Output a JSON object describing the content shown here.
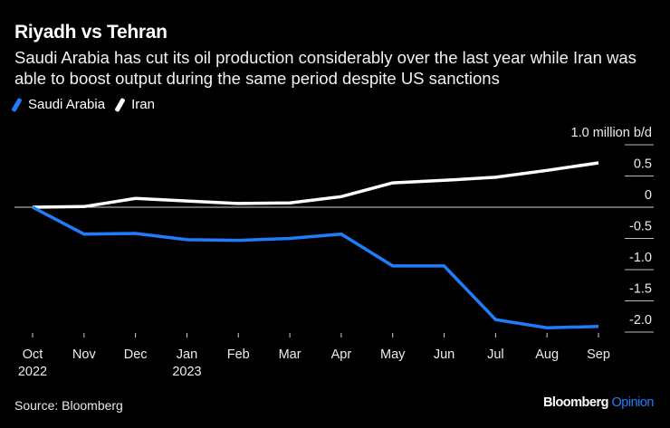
{
  "header": {
    "title": "Riyadh vs Tehran",
    "subtitle": "Saudi Arabia has cut its oil production considerably over the last year while Iran was able to boost output during the same period despite US sanctions"
  },
  "footer": {
    "source": "Source: Bloomberg",
    "brand_main": "Bloomberg",
    "brand_sub": "Opinion",
    "brand_sub_color": "#1f7dfa"
  },
  "chart_data": {
    "type": "line",
    "title": "Riyadh vs Tehran",
    "xlabel": "",
    "ylabel": "million b/d",
    "x": [
      "Oct",
      "Nov",
      "Dec",
      "Jan",
      "Feb",
      "Mar",
      "Apr",
      "May",
      "Jun",
      "Jul",
      "Aug",
      "Sep"
    ],
    "x_sublabels": [
      "2022",
      "",
      "",
      "2023",
      "",
      "",
      "",
      "",
      "",
      "",
      "",
      ""
    ],
    "ylim": [
      -2.2,
      1.0
    ],
    "yticks": [
      1.0,
      0.5,
      0,
      -0.5,
      -1.0,
      -1.5,
      -2.0
    ],
    "ytick_labels": [
      "1.0 million b/d",
      "0.5",
      "0",
      "-0.5",
      "-1.0",
      "-1.5",
      "-2.0"
    ],
    "grid": true,
    "legend_position": "top-left",
    "series": [
      {
        "name": "Saudi Arabia",
        "color": "#1f7dfa",
        "values": [
          0,
          -0.43,
          -0.42,
          -0.52,
          -0.53,
          -0.5,
          -0.43,
          -0.94,
          -0.94,
          -1.8,
          -1.93,
          -1.91
        ]
      },
      {
        "name": "Iran",
        "color": "#ffffff",
        "values": [
          0,
          0.01,
          0.14,
          0.1,
          0.06,
          0.07,
          0.17,
          0.39,
          0.43,
          0.48,
          0.59,
          0.71
        ]
      }
    ]
  }
}
